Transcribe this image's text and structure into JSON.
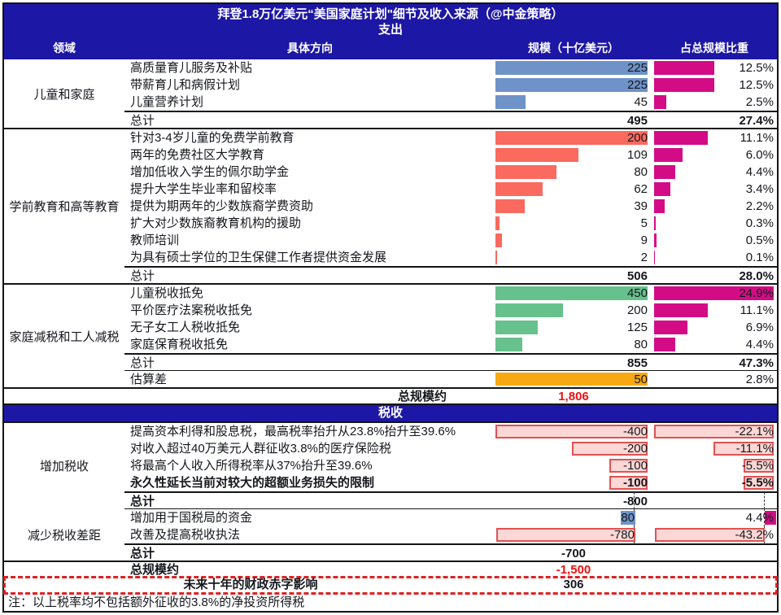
{
  "header": {
    "title": "拜登1.8万亿美元“美国家庭计划\"细节及收入来源（@中金策略）",
    "subtitle": "支出",
    "col_area": "领域",
    "col_direction": "具体方向",
    "col_value": "规模（十亿美元）",
    "col_pct": "占总规模比重"
  },
  "colors": {
    "navy": "#1d17a5",
    "blue": "#6f93c9",
    "salmon": "#fa6a5f",
    "green": "#67c18c",
    "magenta": "#d30c86",
    "orange": "#f8a912",
    "pink_fill": "#fbd7d5",
    "pink_border": "#e05252",
    "red_text": "#ee1111",
    "red_dashed": "#dd2222"
  },
  "chart_data": {
    "type": "table",
    "title": "拜登1.8万亿美元“美国家庭计划\"细节及收入来源（@中金策略）",
    "units": "十亿美元",
    "pct_axis_max": 24.9,
    "spend_sections": [
      {
        "category": "儿童和家庭",
        "bar_color_key": "blue",
        "value_axis_max": 225,
        "rows": [
          {
            "label": "高质量育儿服务及补贴",
            "value": 225,
            "value_label": "225",
            "pct": 12.5,
            "pct_label": "12.5%"
          },
          {
            "label": "带薪育儿和病假计划",
            "value": 225,
            "value_label": "225",
            "pct": 12.5,
            "pct_label": "12.5%"
          },
          {
            "label": "儿童营养计划",
            "value": 45,
            "value_label": "45",
            "pct": 2.5,
            "pct_label": "2.5%"
          }
        ],
        "total": {
          "label": "总计",
          "value_label": "495",
          "pct_label": "27.4%"
        }
      },
      {
        "category": "学前教育和高等教育",
        "bar_color_key": "salmon",
        "value_axis_max": 200,
        "rows": [
          {
            "label": "针对3-4岁儿童的免费学前教育",
            "value": 200,
            "value_label": "200",
            "pct": 11.1,
            "pct_label": "11.1%"
          },
          {
            "label": "两年的免费社区大学教育",
            "value": 109,
            "value_label": "109",
            "pct": 6.0,
            "pct_label": "6.0%"
          },
          {
            "label": "增加低收入学生的佩尔助学金",
            "value": 80,
            "value_label": "80",
            "pct": 4.4,
            "pct_label": "4.4%"
          },
          {
            "label": "提升大学生毕业率和留校率",
            "value": 62,
            "value_label": "62",
            "pct": 3.4,
            "pct_label": "3.4%"
          },
          {
            "label": "提供为期两年的少数族裔学费资助",
            "value": 39,
            "value_label": "39",
            "pct": 2.2,
            "pct_label": "2.2%"
          },
          {
            "label": "扩大对少数族裔教育机构的援助",
            "value": 5,
            "value_label": "5",
            "pct": 0.3,
            "pct_label": "0.3%"
          },
          {
            "label": "教师培训",
            "value": 9,
            "value_label": "9",
            "pct": 0.5,
            "pct_label": "0.5%"
          },
          {
            "label": "为具有硕士学位的卫生保健工作者提供资金发展",
            "value": 2,
            "value_label": "2",
            "pct": 0.1,
            "pct_label": "0.1%"
          }
        ],
        "total": {
          "label": "总计",
          "value_label": "506",
          "pct_label": "28.0%"
        }
      },
      {
        "category": "家庭减税和工人减税",
        "bar_color_key": "green",
        "value_axis_max": 450,
        "rows": [
          {
            "label": "儿童税收抵免",
            "value": 450,
            "value_label": "450",
            "pct": 24.9,
            "pct_label": "24.9%"
          },
          {
            "label": "平价医疗法案税收抵免",
            "value": 200,
            "value_label": "200",
            "pct": 11.1,
            "pct_label": "11.1%"
          },
          {
            "label": "无子女工人税收抵免",
            "value": 125,
            "value_label": "125",
            "pct": 6.9,
            "pct_label": "6.9%"
          },
          {
            "label": "家庭保育税收抵免",
            "value": 80,
            "value_label": "80",
            "pct": 4.4,
            "pct_label": "4.4%"
          }
        ],
        "total": {
          "label": "总计",
          "value_label": "855",
          "pct_label": "47.3%"
        },
        "estimate_row": {
          "label": "估算差",
          "value": 50,
          "value_label": "50",
          "pct_label": "2.8%",
          "bar_color_key": "orange"
        }
      }
    ],
    "spend_grand_total": {
      "label": "总规模约",
      "value_label": "1,806"
    },
    "tax_header": "税收",
    "tax_sections": [
      {
        "category": "增加税收",
        "value_axis_max": 400,
        "pct_axis_max": 22.1,
        "rows": [
          {
            "label": "提高资本利得和股息税，最高税率抬升从23.8%抬升至39.6%",
            "value": -400,
            "value_label": "-400",
            "pct": -22.1,
            "pct_label": "-22.1%"
          },
          {
            "label": "对收入超过40万美元人群征收3.8%的医疗保险税",
            "value": -200,
            "value_label": "-200",
            "pct": -11.1,
            "pct_label": "-11.1%"
          },
          {
            "label": "将最高个人收入所得税率从37%抬升至39.6%",
            "value": -100,
            "value_label": "-100",
            "pct": -5.5,
            "pct_label": "-5.5%"
          },
          {
            "label": "永久性延长当前对较大的超额业务损失的限制",
            "value": -100,
            "value_label": "-100",
            "pct": -5.5,
            "pct_label": "-5.5%",
            "bold": true
          }
        ],
        "total": {
          "label": "总计",
          "value_label": "-800",
          "align": "right"
        }
      },
      {
        "category": "减少税收差距",
        "value_axis_max": 780,
        "pct_axis_max": 43.2,
        "rows": [
          {
            "label": "增加用于国税局的资金",
            "value": 80,
            "value_label": "80",
            "pct": 4.4,
            "pct_label": "4.4%",
            "positive": true
          },
          {
            "label": "改善及提高税收执法",
            "value": -780,
            "value_label": "-780",
            "pct": -43.2,
            "pct_label": "-43.2%"
          }
        ],
        "total": {
          "label": "总计",
          "value_label": "-700",
          "align": "center"
        }
      }
    ],
    "tax_grand_total": {
      "label": "总规模约",
      "value_label": "-1,500"
    },
    "deficit_row": {
      "label": "未来十年的财政赤字影响",
      "value_label": "306"
    },
    "note": "注：以上税率均不包括额外征收的3.8%的净投资所得税"
  }
}
